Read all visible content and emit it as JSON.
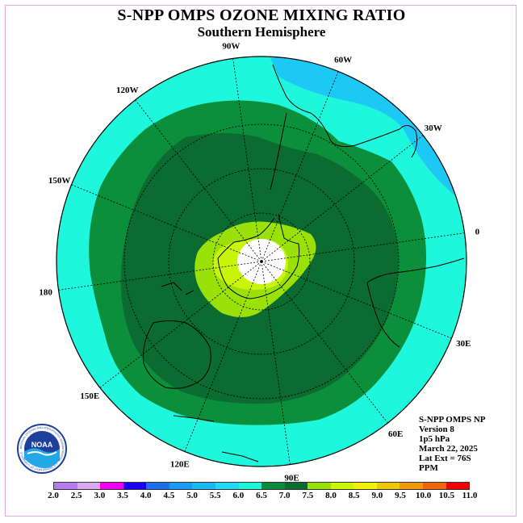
{
  "title": "S-NPP OMPS OZONE MIXING RATIO",
  "subtitle": "Southern Hemisphere",
  "logo_text": "NOAA",
  "logo_ring_text": "NATIONAL OCEANIC AND ATMOSPHERIC ADMINISTRATION · U.S. DEPARTMENT OF COMMERCE",
  "longitude_labels": [
    "90W",
    "60W",
    "30W",
    "0",
    "30E",
    "60E",
    "90E",
    "120E",
    "150E",
    "180",
    "150W",
    "120W"
  ],
  "info": {
    "product": "S-NPP OMPS NP",
    "version": "Version 8",
    "level": "1p5 hPa",
    "date": "March 22, 2025",
    "lat_ext": "Lat Ext = 76S",
    "units": "PPM"
  },
  "legend": {
    "ticks": [
      "2.0",
      "2.5",
      "3.0",
      "3.5",
      "4.0",
      "4.5",
      "5.0",
      "5.5",
      "6.0",
      "6.5",
      "7.0",
      "7.5",
      "8.0",
      "8.5",
      "9.0",
      "9.5",
      "10.0",
      "10.5",
      "11.0"
    ],
    "colors": [
      "#b57cf2",
      "#d9a9f0",
      "#f000f0",
      "#1800f0",
      "#1e6ff0",
      "#1a9af2",
      "#1ab8f5",
      "#23d8f5",
      "#1ff4d8",
      "#0a8a3a",
      "#0a6a2f",
      "#9ae10a",
      "#c8f50a",
      "#f0f00a",
      "#f0c80a",
      "#f09a0a",
      "#f0640a",
      "#f00000",
      "#80583c"
    ]
  },
  "map_colors": {
    "cyan_5_5": "#1dc8f5",
    "aqua_6_0": "#1ff7dc",
    "green_6_5": "#0b8f3b",
    "darkgreen_7_0": "#0b6b30",
    "lime_7_5": "#9ae10a",
    "yellowgreen_8_0": "#c8f50a",
    "white_center": "#ffffff"
  }
}
